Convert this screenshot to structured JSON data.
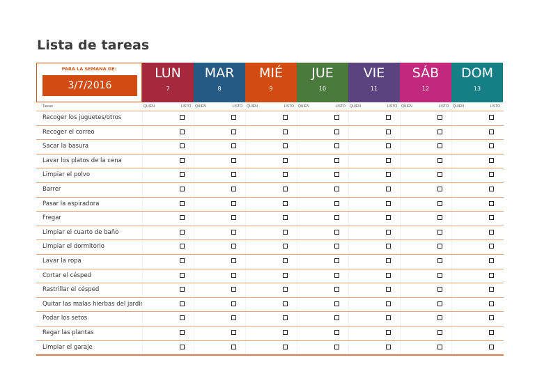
{
  "title": "Lista de tareas",
  "week_label": "PARA LA SEMANA DE:",
  "week_date": "3/7/2016",
  "days": [
    {
      "name": "LUN",
      "num": "7",
      "color": "#a4293d"
    },
    {
      "name": "MAR",
      "num": "8",
      "color": "#245a83"
    },
    {
      "name": "MIÉ",
      "num": "9",
      "color": "#d24b12"
    },
    {
      "name": "JUE",
      "num": "10",
      "color": "#4a7a3c"
    },
    {
      "name": "VIE",
      "num": "11",
      "color": "#5b4380"
    },
    {
      "name": "SÁB",
      "num": "12",
      "color": "#c2287c"
    },
    {
      "name": "DOM",
      "num": "13",
      "color": "#167f86"
    }
  ],
  "columns": {
    "task": "Tareas",
    "who": "QUIÉN",
    "done": "LISTO"
  },
  "tasks": [
    "Recoger los juguetes/otros",
    "Recoger el correo",
    "Sacar la basura",
    "Lavar los platos de la cena",
    "Limpiar el polvo",
    "Barrer",
    "Pasar la aspiradora",
    "Fregar",
    "Limpiar el cuarto de baño",
    "Limpiar el dormitorio",
    "Lavar la ropa",
    "Cortar el césped",
    "Rastrillar el césped",
    "Quitar las malas hierbas del jardín",
    "Podar los setos",
    "Regar las plantas",
    "Limpiar el garaje"
  ]
}
